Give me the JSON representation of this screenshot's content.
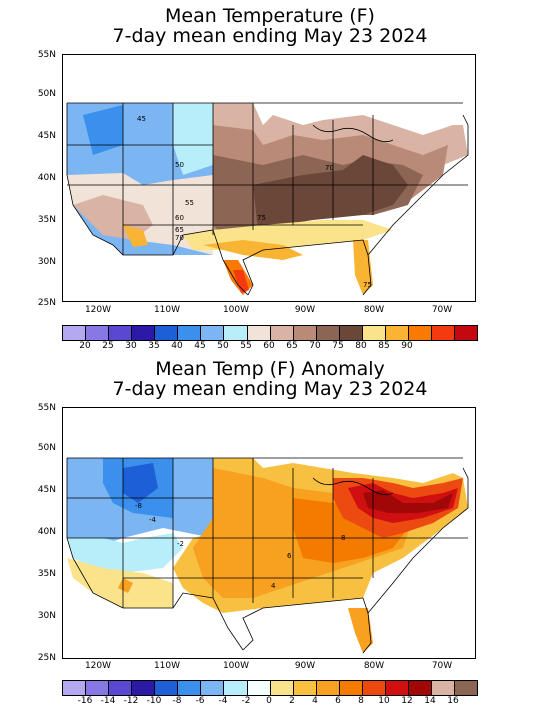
{
  "top_panel": {
    "title_line1": "Mean Temperature (F)",
    "title_line2": "7-day mean ending May 23 2024",
    "lat_labels": [
      "55N",
      "50N",
      "45N",
      "40N",
      "35N",
      "30N",
      "25N"
    ],
    "lon_labels": [
      "120W",
      "110W",
      "100W",
      "90W",
      "80W",
      "70W"
    ],
    "colorbar_values": [
      "20",
      "25",
      "30",
      "35",
      "40",
      "45",
      "50",
      "55",
      "60",
      "65",
      "70",
      "75",
      "80",
      "85",
      "90"
    ],
    "colorbar_colors": [
      "#b4a8f0",
      "#8878e4",
      "#5b48d2",
      "#2c1aa6",
      "#1c5fd6",
      "#3a90ec",
      "#7bb5f2",
      "#b8eefa",
      "#f2e3d9",
      "#d9b4a4",
      "#b98a78",
      "#8c6554",
      "#6a4738",
      "#fae38a",
      "#f8b432",
      "#f87a00",
      "#f43a10",
      "#c40810"
    ],
    "contour_labels": [
      "45",
      "50",
      "55",
      "60",
      "65",
      "70",
      "70",
      "75",
      "75"
    ]
  },
  "bottom_panel": {
    "title_line1": "Mean Temp (F) Anomaly",
    "title_line2": "7-day mean ending May 23 2024",
    "lat_labels": [
      "55N",
      "50N",
      "45N",
      "40N",
      "35N",
      "30N",
      "25N"
    ],
    "lon_labels": [
      "120W",
      "110W",
      "100W",
      "90W",
      "80W",
      "70W"
    ],
    "colorbar_values": [
      "-16",
      "-14",
      "-12",
      "-10",
      "-8",
      "-6",
      "-4",
      "-2",
      "0",
      "2",
      "4",
      "6",
      "8",
      "10",
      "12",
      "14",
      "16"
    ],
    "colorbar_colors": [
      "#b4a8f0",
      "#8878e4",
      "#5b48d2",
      "#2c1aa6",
      "#1c5fd6",
      "#3a90ec",
      "#7bb5f2",
      "#b8eefa",
      "#f4ffff",
      "#fae38a",
      "#f8c040",
      "#f8a020",
      "#f47a00",
      "#ec4a10",
      "#d01010",
      "#a00808",
      "#d9b4a4",
      "#8c6554"
    ],
    "contour_labels": [
      "-8",
      "-4",
      "-2",
      "4",
      "6",
      "8"
    ]
  }
}
